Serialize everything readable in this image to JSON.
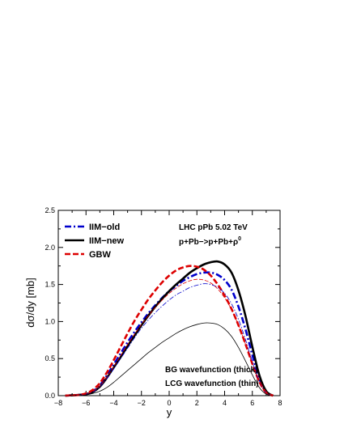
{
  "chart_data": {
    "type": "line",
    "xlabel": "y",
    "ylabel": "dσ/dy [mb]",
    "xlim": [
      -8,
      8
    ],
    "ylim": [
      0.0,
      2.5
    ],
    "xticks": [
      -8,
      -6,
      -4,
      -2,
      0,
      2,
      4,
      6,
      8
    ],
    "xtick_labels": [
      "−8",
      "−6",
      "−4",
      "−2",
      "0",
      "2",
      "4",
      "6",
      "8"
    ],
    "yticks": [
      0.0,
      0.5,
      1.0,
      1.5,
      2.0,
      2.5
    ],
    "ytick_labels": [
      "0.0",
      "0.5",
      "1.0",
      "1.5",
      "2.0",
      "2.5"
    ],
    "grid": false,
    "legend_position": "top-left",
    "legend": [
      "IIM−old",
      "IIM−new",
      "GBW"
    ],
    "annotations": {
      "process_line1": "LHC pPb 5.02 TeV",
      "process_line2_base": "p+Pb−>p+Pb+ρ",
      "process_line2_sup": "0",
      "note_line1": "BG wavefunction (thick)",
      "note_line2": "LCG wavefunction (thin)"
    },
    "series": [
      {
        "name": "IIM−old",
        "wavefunction": "BG",
        "color": "#0000cc",
        "style": "dashdot",
        "x": [
          -7.5,
          -7,
          -6.5,
          -6,
          -5.5,
          -5,
          -4.5,
          -4,
          -3.5,
          -3,
          -2.5,
          -2,
          -1.5,
          -1,
          -0.5,
          0,
          0.5,
          1,
          1.5,
          2,
          2.5,
          3,
          3.5,
          4,
          4.5,
          5,
          5.5,
          6,
          6.5,
          7,
          7.5
        ],
        "y": [
          0.0,
          0.005,
          0.01,
          0.02,
          0.06,
          0.14,
          0.27,
          0.42,
          0.57,
          0.72,
          0.86,
          0.99,
          1.11,
          1.22,
          1.32,
          1.41,
          1.48,
          1.55,
          1.6,
          1.64,
          1.66,
          1.66,
          1.63,
          1.56,
          1.43,
          1.2,
          0.9,
          0.55,
          0.23,
          0.05,
          0.0
        ]
      },
      {
        "name": "IIM−new",
        "wavefunction": "BG",
        "color": "#000000",
        "style": "solid",
        "x": [
          -7.5,
          -7,
          -6.5,
          -6,
          -5.5,
          -5,
          -4.5,
          -4,
          -3.5,
          -3,
          -2.5,
          -2,
          -1.5,
          -1,
          -0.5,
          0,
          0.5,
          1,
          1.5,
          2,
          2.5,
          3,
          3.5,
          4,
          4.5,
          5,
          5.5,
          6,
          6.5,
          7,
          7.5
        ],
        "y": [
          0.0,
          0.005,
          0.01,
          0.02,
          0.05,
          0.12,
          0.24,
          0.38,
          0.52,
          0.67,
          0.81,
          0.95,
          1.08,
          1.2,
          1.31,
          1.41,
          1.5,
          1.58,
          1.66,
          1.72,
          1.77,
          1.8,
          1.81,
          1.77,
          1.66,
          1.42,
          1.08,
          0.66,
          0.28,
          0.06,
          0.0
        ]
      },
      {
        "name": "GBW",
        "wavefunction": "BG",
        "color": "#dd0000",
        "style": "dashed",
        "x": [
          -7.5,
          -7,
          -6.5,
          -6,
          -5.5,
          -5,
          -4.5,
          -4,
          -3.5,
          -3,
          -2.5,
          -2,
          -1.5,
          -1,
          -0.5,
          0,
          0.5,
          1,
          1.5,
          2,
          2.5,
          3,
          3.5,
          4,
          4.5,
          5,
          5.5,
          6,
          6.5,
          7,
          7.5
        ],
        "y": [
          0.0,
          0.005,
          0.01,
          0.03,
          0.08,
          0.17,
          0.31,
          0.48,
          0.66,
          0.84,
          1.01,
          1.16,
          1.3,
          1.42,
          1.53,
          1.62,
          1.69,
          1.73,
          1.75,
          1.74,
          1.7,
          1.62,
          1.5,
          1.35,
          1.17,
          0.95,
          0.7,
          0.43,
          0.19,
          0.04,
          0.0
        ]
      },
      {
        "wavefunction": "LCG",
        "color": "#0000cc",
        "style": "dashdot-thin",
        "x": [
          -7.5,
          -7,
          -6.5,
          -6,
          -5.5,
          -5,
          -4.5,
          -4,
          -3.5,
          -3,
          -2.5,
          -2,
          -1.5,
          -1,
          -0.5,
          0,
          0.5,
          1,
          1.5,
          2,
          2.5,
          3,
          3.5,
          4,
          4.5,
          5,
          5.5,
          6,
          6.5,
          7,
          7.5
        ],
        "y": [
          0.0,
          0.005,
          0.01,
          0.02,
          0.05,
          0.12,
          0.23,
          0.36,
          0.5,
          0.64,
          0.78,
          0.91,
          1.02,
          1.12,
          1.21,
          1.29,
          1.36,
          1.41,
          1.46,
          1.49,
          1.51,
          1.5,
          1.46,
          1.38,
          1.24,
          1.03,
          0.76,
          0.46,
          0.19,
          0.04,
          0.0
        ]
      },
      {
        "wavefunction": "LCG",
        "color": "#000000",
        "style": "solid-thin",
        "x": [
          -7.5,
          -7,
          -6.5,
          -6,
          -5.5,
          -5,
          -4.5,
          -4,
          -3.5,
          -3,
          -2.5,
          -2,
          -1.5,
          -1,
          -0.5,
          0,
          0.5,
          1,
          1.5,
          2,
          2.5,
          3,
          3.5,
          4,
          4.5,
          5,
          5.5,
          6,
          6.5,
          7,
          7.5
        ],
        "y": [
          0.0,
          0.003,
          0.006,
          0.01,
          0.03,
          0.06,
          0.11,
          0.18,
          0.26,
          0.34,
          0.42,
          0.5,
          0.58,
          0.65,
          0.72,
          0.78,
          0.84,
          0.89,
          0.93,
          0.96,
          0.98,
          0.98,
          0.96,
          0.9,
          0.8,
          0.65,
          0.47,
          0.28,
          0.11,
          0.02,
          0.0
        ]
      },
      {
        "wavefunction": "LCG",
        "color": "#dd0000",
        "style": "dashed-thin",
        "x": [
          -7.5,
          -7,
          -6.5,
          -6,
          -5.5,
          -5,
          -4.5,
          -4,
          -3.5,
          -3,
          -2.5,
          -2,
          -1.5,
          -1,
          -0.5,
          0,
          0.5,
          1,
          1.5,
          2,
          2.5,
          3,
          3.5,
          4,
          4.5,
          5,
          5.5,
          6,
          6.5,
          7,
          7.5
        ],
        "y": [
          0.0,
          0.005,
          0.01,
          0.02,
          0.06,
          0.13,
          0.25,
          0.39,
          0.54,
          0.69,
          0.83,
          0.96,
          1.08,
          1.19,
          1.29,
          1.38,
          1.45,
          1.51,
          1.55,
          1.57,
          1.56,
          1.52,
          1.44,
          1.32,
          1.16,
          0.95,
          0.7,
          0.43,
          0.18,
          0.04,
          0.0
        ]
      }
    ]
  }
}
